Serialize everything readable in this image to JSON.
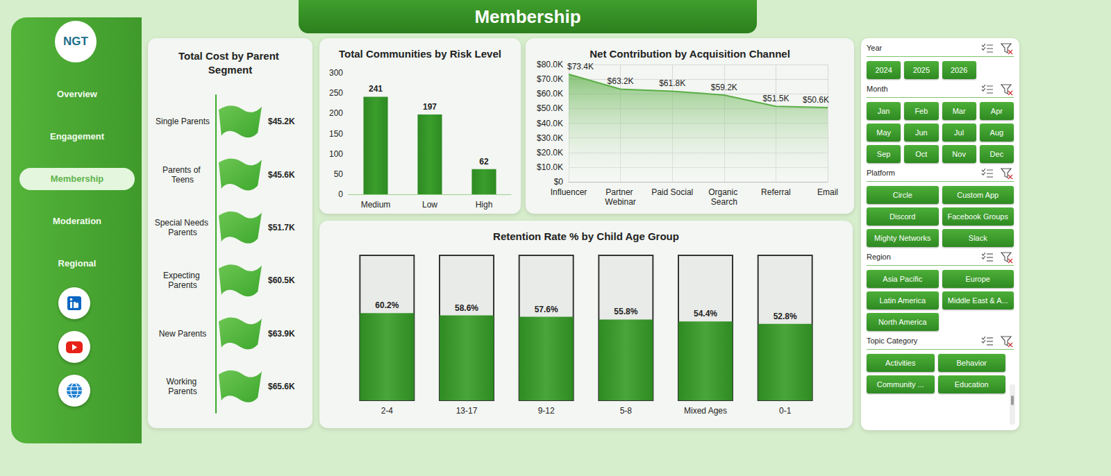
{
  "header": {
    "title": "Membership"
  },
  "logo": "NGT",
  "nav": {
    "items": [
      "Overview",
      "Engagement",
      "Membership",
      "Moderation",
      "Regional"
    ],
    "active": "Membership"
  },
  "filters": [
    {
      "title": "Year",
      "options": [
        "2024",
        "2025",
        "2026"
      ]
    },
    {
      "title": "Month",
      "options": [
        "Jan",
        "Feb",
        "Mar",
        "Apr",
        "May",
        "Jun",
        "Jul",
        "Aug",
        "Sep",
        "Oct",
        "Nov",
        "Dec"
      ]
    },
    {
      "title": "Platform",
      "options": [
        "Circle",
        "Custom App",
        "Discord",
        "Facebook Groups",
        "Mighty Networks",
        "Slack"
      ]
    },
    {
      "title": "Region",
      "options": [
        "Asia Pacific",
        "Europe",
        "Latin America",
        "Middle East & A...",
        "North America"
      ]
    },
    {
      "title": "Topic Category",
      "options": [
        "Activities",
        "Behavior",
        "Community ...",
        "Education"
      ]
    }
  ],
  "chart_data": [
    {
      "type": "pictorialBar",
      "title": "Total Cost by Parent Segment",
      "orientation": "horizontal",
      "categories": [
        "Single Parents",
        "Parents of Teens",
        "Special Needs Parents",
        "Expecting Parents",
        "New Parents",
        "Working Parents"
      ],
      "values": [
        45200,
        45600,
        51700,
        60500,
        63900,
        65600
      ],
      "value_labels": [
        "$45.2K",
        "$45.6K",
        "$51.7K",
        "$60.5K",
        "$63.9K",
        "$65.6K"
      ],
      "color": "#3da82e",
      "marker": "flag",
      "data_labels": true,
      "tick_labels": "y",
      "grid": false
    },
    {
      "type": "bar",
      "title": "Total Communities by Risk Level",
      "categories": [
        "Medium",
        "Low",
        "High"
      ],
      "values": [
        241,
        197,
        62
      ],
      "color": "#3a9e2c",
      "ylim": [
        0,
        300
      ],
      "yticks": [
        0,
        50,
        100,
        150,
        200,
        250,
        300
      ],
      "grid": false,
      "data_labels": true
    },
    {
      "type": "area",
      "title": "Net Contribution by Acquisition Channel",
      "categories": [
        "Influencer",
        "Partner Webinar",
        "Paid Social",
        "Organic Search",
        "Referral",
        "Email"
      ],
      "values": [
        73400,
        63200,
        61800,
        59200,
        51500,
        50600
      ],
      "value_labels": [
        "$73.4K",
        "$63.2K",
        "$61.8K",
        "$59.2K",
        "$51.5K",
        "$50.6K"
      ],
      "color": "#5aae45",
      "ylim": [
        0,
        80000
      ],
      "yticks": [
        {
          "value": 0,
          "label": "$0"
        },
        {
          "value": 10000,
          "label": "$10.0K"
        },
        {
          "value": 20000,
          "label": "$20.0K"
        },
        {
          "value": 30000,
          "label": "$30.0K"
        },
        {
          "value": 40000,
          "label": "$40.0K"
        },
        {
          "value": 50000,
          "label": "$50.0K"
        },
        {
          "value": 60000,
          "label": "$60.0K"
        },
        {
          "value": 70000,
          "label": "$70.0K"
        },
        {
          "value": 80000,
          "label": "$80.0K"
        }
      ],
      "grid": true,
      "data_labels": true
    },
    {
      "type": "bar",
      "title": "Retention Rate % by Child Age Group",
      "categories": [
        "2-4",
        "13-17",
        "9-12",
        "5-8",
        "Mixed Ages",
        "0-1"
      ],
      "values": [
        60.2,
        58.6,
        57.6,
        55.8,
        54.4,
        52.8
      ],
      "value_labels": [
        "60.2%",
        "58.6%",
        "57.6%",
        "55.8%",
        "54.4%",
        "52.8%"
      ],
      "color": "#4aa63a",
      "marker": "tube",
      "ylim": [
        0,
        100
      ],
      "tick_labels": "x",
      "data_labels": true
    }
  ]
}
